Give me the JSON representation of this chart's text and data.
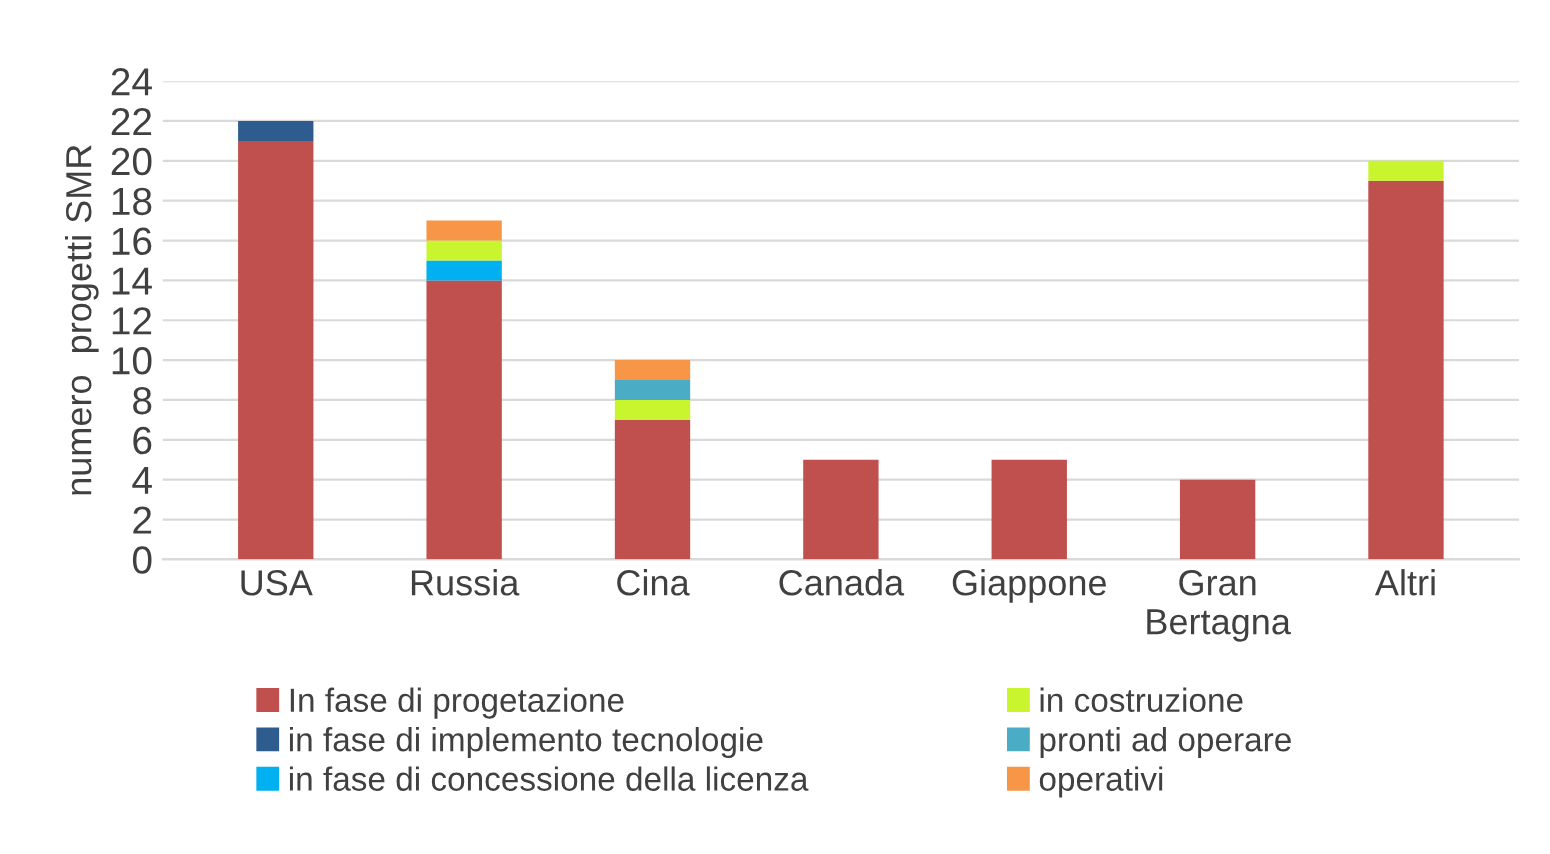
{
  "chart_data": {
    "type": "bar",
    "stacked": true,
    "ylabel": "numero  progetti SMR",
    "categories": [
      "USA",
      "Russia",
      "Cina",
      "Canada",
      "Giappone",
      "Gran\nBertagna",
      "Altri"
    ],
    "series": [
      {
        "name": "In fase di progetazione",
        "color": "#c0504d",
        "values": [
          21,
          14,
          7,
          5,
          5,
          4,
          19
        ]
      },
      {
        "name": "in fase di implemento tecnologie",
        "color": "#2e5c8e",
        "values": [
          1,
          null,
          null,
          null,
          null,
          null,
          null
        ]
      },
      {
        "name": "in fase di concessione della licenza",
        "color": "#00b0f0",
        "values": [
          null,
          1,
          null,
          null,
          null,
          null,
          null
        ]
      },
      {
        "name": "in costruzione",
        "color": "#c8f52d",
        "values": [
          null,
          1,
          1,
          null,
          null,
          null,
          1
        ]
      },
      {
        "name": "pronti ad operare",
        "color": "#4bacc6",
        "values": [
          null,
          null,
          1,
          null,
          null,
          null,
          null
        ]
      },
      {
        "name": "operativi",
        "color": "#f79646",
        "values": [
          null,
          1,
          1,
          null,
          null,
          null,
          null
        ]
      }
    ],
    "ylim": [
      0,
      24
    ],
    "yticks": [
      0,
      2,
      4,
      6,
      8,
      10,
      12,
      14,
      16,
      18,
      20,
      22,
      24
    ],
    "grid": "y",
    "legend": "bottom"
  }
}
